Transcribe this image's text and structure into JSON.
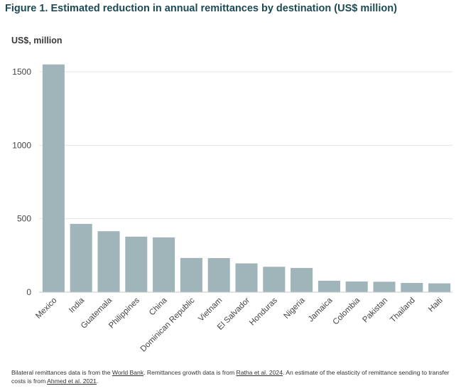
{
  "title": "Figure 1. Estimated reduction in annual remittances by destination (US$ million)",
  "unit_label": "US$, million",
  "chart_data": {
    "type": "bar",
    "categories": [
      "Mexico",
      "India",
      "Guatemala",
      "Philippines",
      "China",
      "Dominican Republic",
      "Vietnam",
      "El Salvador",
      "Honduras",
      "Nigeria",
      "Jamaica",
      "Colombia",
      "Pakistan",
      "Thailand",
      "Haiti"
    ],
    "values": [
      1550,
      465,
      415,
      378,
      373,
      233,
      232,
      196,
      173,
      165,
      78,
      73,
      71,
      63,
      60
    ],
    "ylim": [
      0,
      1650
    ],
    "yticks": [
      0,
      500,
      1000,
      1500
    ],
    "xlabel": "",
    "ylabel": "US$, million",
    "bar_color": "#9fb5b9",
    "grid": true,
    "legend": "none"
  },
  "footnote": {
    "p1": "Bilateral remittances data is from the ",
    "link1": "World Bank",
    "p2": ". Remittances growth data is from ",
    "link2": "Ratha et al. 2024",
    "p3": ". An estimate of the elasticity of remittance sending to transfer costs is from ",
    "link3": "Ahmed et al. 2021",
    "p4": "."
  }
}
